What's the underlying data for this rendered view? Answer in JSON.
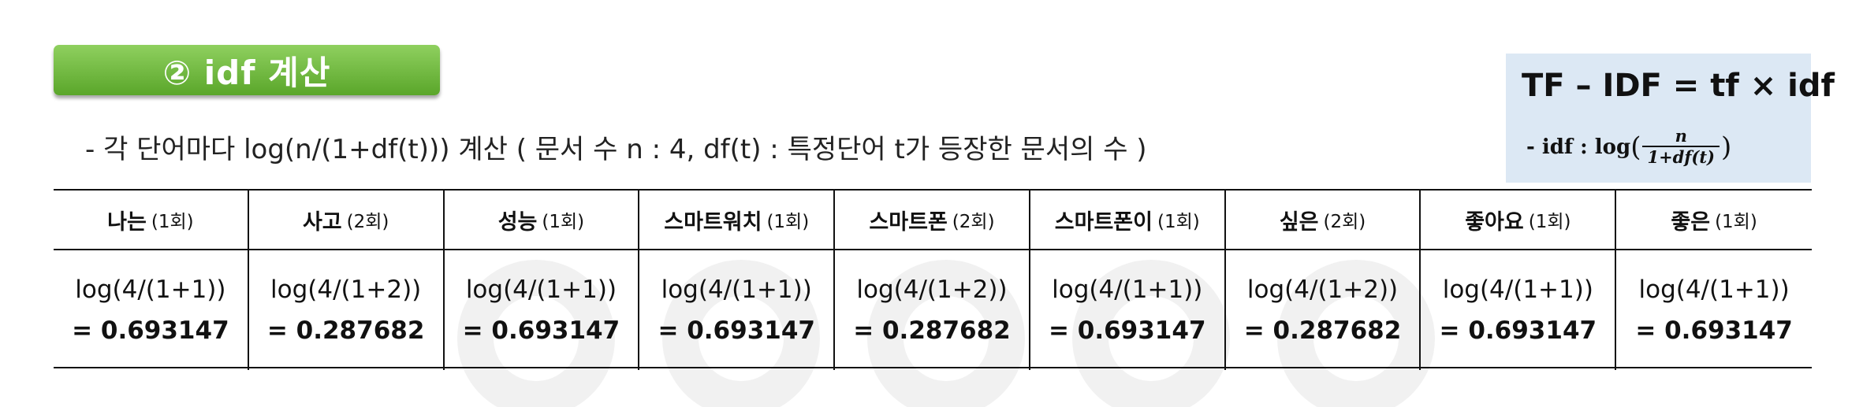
{
  "section_tag": {
    "label": "② idf 계산"
  },
  "description": "- 각 단어마다 log(n/(1+df(t))) 계산 ( 문서 수 n : 4, df(t) : 특정단어 t가 등장한 문서의 수 )",
  "formula": {
    "title": "TF – IDF = tf × idf",
    "idf_prefix": "- idf : log",
    "open_paren": "(",
    "numerator": "n",
    "denominator": "1+df(t)",
    "close_paren": ")"
  },
  "table": {
    "columns": [
      {
        "word": "나는",
        "count": "(1회)",
        "expr": "log(4/(1+1))",
        "value": "= 0.693147"
      },
      {
        "word": "사고",
        "count": "(2회)",
        "expr": "log(4/(1+2))",
        "value": "= 0.287682"
      },
      {
        "word": "성능",
        "count": "(1회)",
        "expr": "log(4/(1+1))",
        "value": "= 0.693147"
      },
      {
        "word": "스마트워치",
        "count": "(1회)",
        "expr": "log(4/(1+1))",
        "value": "= 0.693147"
      },
      {
        "word": "스마트폰",
        "count": "(2회)",
        "expr": "log(4/(1+2))",
        "value": "= 0.287682"
      },
      {
        "word": "스마트폰이",
        "count": "(1회)",
        "expr": "log(4/(1+1))",
        "value": "= 0.693147"
      },
      {
        "word": "싶은",
        "count": "(2회)",
        "expr": "log(4/(1+2))",
        "value": "= 0.287682"
      },
      {
        "word": "좋아요",
        "count": "(1회)",
        "expr": "log(4/(1+1))",
        "value": "= 0.693147"
      },
      {
        "word": "좋은",
        "count": "(1회)",
        "expr": "log(4/(1+1))",
        "value": "= 0.693147"
      }
    ]
  },
  "colors": {
    "tag_green": "#6ab83a",
    "formula_bg": "#dce8f4",
    "rule": "#111111"
  }
}
